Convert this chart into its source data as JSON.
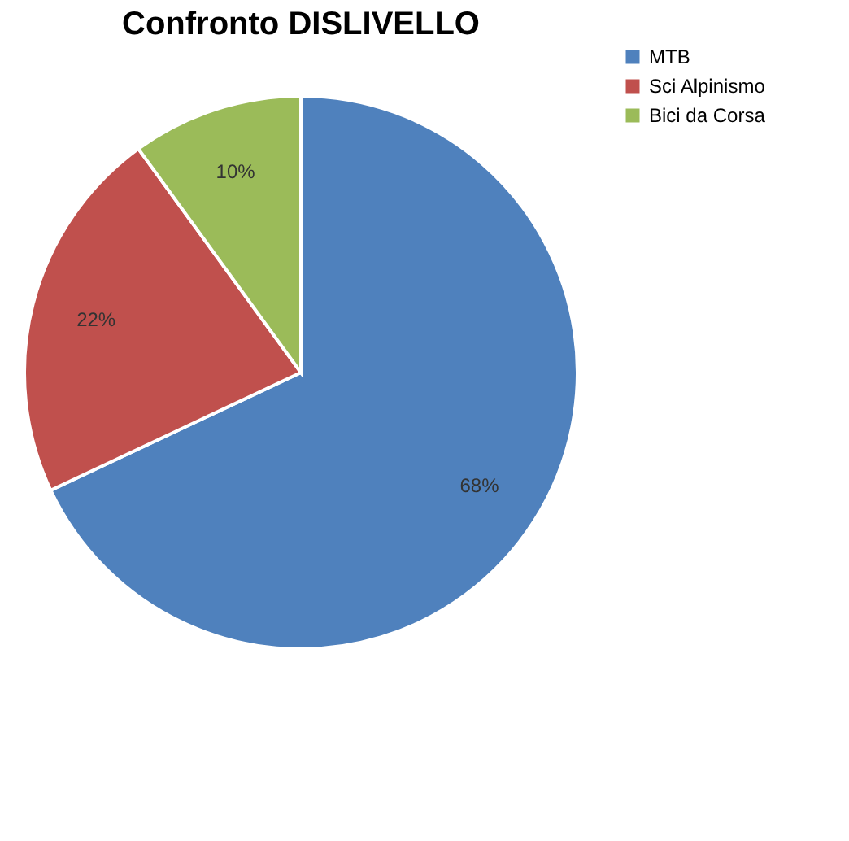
{
  "chart_data": {
    "type": "pie",
    "title": "Confronto DISLIVELLO",
    "categories": [
      "MTB",
      "Sci Alpinismo",
      "Bici da Corsa"
    ],
    "values": [
      68,
      22,
      10
    ],
    "colors": [
      "#4f81bd",
      "#c0504d",
      "#9bbb59"
    ],
    "value_labels": [
      "68%",
      "22%",
      "10%"
    ],
    "legend": "right"
  }
}
